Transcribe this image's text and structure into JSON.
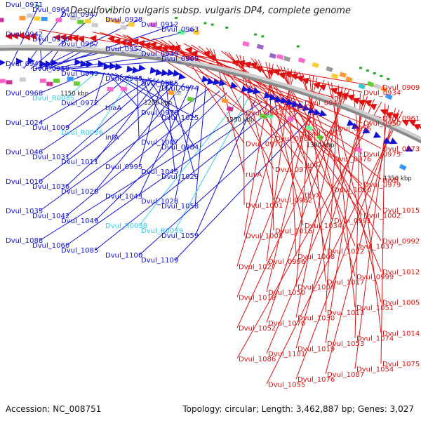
{
  "title": "Desulfovibrio vulgaris subsp. vulgaris DP4, complete genome",
  "footer": {
    "accession": "Accession: NC_008751",
    "summary": "Topology: circular; Length: 3,462,887 bp; Genes: 3,027"
  },
  "ring_labels": [
    {
      "label": "1150 kbp",
      "deg": 8
    },
    {
      "label": "1200 kbp",
      "deg": 21.5
    },
    {
      "label": "1250 kbp",
      "deg": 35
    },
    {
      "label": "1300 kbp",
      "deg": 48.5
    },
    {
      "label": "1350 kbp",
      "deg": 62
    }
  ],
  "colors": {
    "forward": "#1010d8",
    "trna": "#33ccee",
    "reverse": "#e01010",
    "backbone": "#8a8a8a"
  },
  "left_labels": [
    {
      "text": "Dvul_0971",
      "kind": "gene",
      "deg": 1
    },
    {
      "text": "Dvul_0964",
      "kind": "gene",
      "deg": 3
    },
    {
      "text": "Dvul_0947",
      "kind": "gene",
      "deg": 4
    },
    {
      "text": "Dvul_0928",
      "kind": "gene",
      "deg": 5
    },
    {
      "text": "Dvul_0912",
      "kind": "gene",
      "deg": 6
    },
    {
      "text": "Dvul_0963",
      "kind": "gene",
      "deg": 4.5
    },
    {
      "text": "Dvul_0942",
      "kind": "gene",
      "deg": 5.5
    },
    {
      "text": "Dvul_0930",
      "kind": "gene",
      "deg": 6
    },
    {
      "text": "Dvul_0962",
      "kind": "gene",
      "deg": 6.5
    },
    {
      "text": "Dvul_0952",
      "kind": "gene",
      "deg": 7
    },
    {
      "text": "Dvul_0939",
      "kind": "gene",
      "deg": 7.5
    },
    {
      "text": "Dvul_0969",
      "kind": "gene",
      "deg": 8
    },
    {
      "text": "Dvul_0943",
      "kind": "gene",
      "deg": 8.5
    },
    {
      "text": "Dvul_0959",
      "kind": "gene",
      "deg": 9
    },
    {
      "text": "Dvul_0949",
      "kind": "gene",
      "deg": 9.5
    },
    {
      "text": "Dvul_0965",
      "kind": "gene",
      "deg": 10
    },
    {
      "text": "Dvul_0955",
      "kind": "gene",
      "deg": 10.5
    },
    {
      "text": "Dvul_0974",
      "kind": "gene",
      "deg": 12
    },
    {
      "text": "Dvul_0968",
      "kind": "gene",
      "deg": 12.5
    },
    {
      "text": "Dvul_R0035",
      "kind": "trna",
      "deg": 13
    },
    {
      "text": "Dvul_0972",
      "kind": "gene",
      "deg": 14
    },
    {
      "text": "tnaA",
      "kind": "gene",
      "deg": 14.5
    },
    {
      "text": "Dvul_0978",
      "kind": "gene",
      "deg": 15
    },
    {
      "text": "Dvul_1025",
      "kind": "gene",
      "deg": 15.5
    },
    {
      "text": "Dvul_1024",
      "kind": "gene",
      "deg": 16.5
    },
    {
      "text": "Dvul_1009",
      "kind": "gene",
      "deg": 17.5
    },
    {
      "text": "Dvul_R0036",
      "kind": "trna",
      "deg": 18
    },
    {
      "text": "infA",
      "kind": "gene",
      "deg": 18.5
    },
    {
      "text": "Dvul_1007",
      "kind": "gene",
      "deg": 19
    },
    {
      "text": "Dvul_0984",
      "kind": "gene",
      "deg": 20
    },
    {
      "text": "Dvul_1046",
      "kind": "gene",
      "deg": 20.5
    },
    {
      "text": "Dvul_1031",
      "kind": "gene",
      "deg": 21
    },
    {
      "text": "Dvul_1011",
      "kind": "gene",
      "deg": 21.5
    },
    {
      "text": "Dvul_0995",
      "kind": "gene",
      "deg": 22
    },
    {
      "text": "Dvul_1045",
      "kind": "gene",
      "deg": 22.5
    },
    {
      "text": "Dvul_1029",
      "kind": "gene",
      "deg": 23
    },
    {
      "text": "Dvul_1010",
      "kind": "gene",
      "deg": 23.5
    },
    {
      "text": "Dvul_1036",
      "kind": "gene",
      "deg": 24
    },
    {
      "text": "Dvul_1020",
      "kind": "gene",
      "deg": 25
    },
    {
      "text": "Dvul_1043",
      "kind": "gene",
      "deg": 26
    },
    {
      "text": "Dvul_1028",
      "kind": "gene",
      "deg": 27
    },
    {
      "text": "Dvul_1058",
      "kind": "gene",
      "deg": 28
    },
    {
      "text": "Dvul_1035",
      "kind": "gene",
      "deg": 28.5
    },
    {
      "text": "Dvul_1042",
      "kind": "gene",
      "deg": 30
    },
    {
      "text": "Dvul_1049",
      "kind": "gene",
      "deg": 31
    },
    {
      "text": "Dvul_R0038",
      "kind": "trna",
      "deg": 33
    },
    {
      "text": "Dvul_R0039",
      "kind": "trna",
      "deg": 34
    },
    {
      "text": "Dvul_1059",
      "kind": "gene",
      "deg": 35
    },
    {
      "text": "Dvul_1088",
      "kind": "gene",
      "deg": 36
    },
    {
      "text": "Dvul_1060",
      "kind": "gene",
      "deg": 37
    },
    {
      "text": "Dvul_1085",
      "kind": "gene",
      "deg": 38
    },
    {
      "text": "Dvul_1100",
      "kind": "gene",
      "deg": 41
    },
    {
      "text": "Dvul_1109",
      "kind": "gene",
      "deg": 43
    }
  ],
  "right_labels": [
    {
      "text": "Dvul_0909",
      "deg": 5
    },
    {
      "text": "Dvul_0934",
      "deg": 12
    },
    {
      "text": "ndk",
      "deg": 13
    },
    {
      "text": "Dvul_0944",
      "deg": 15
    },
    {
      "text": "Dvul_0951",
      "deg": 16
    },
    {
      "text": "Dvul_0941",
      "deg": 16.5
    },
    {
      "text": "Dvul_0961",
      "deg": 18
    },
    {
      "text": "Dvul_0950",
      "deg": 18.5
    },
    {
      "text": "Dvul_0956",
      "deg": 20
    },
    {
      "text": "Dvul_0957",
      "deg": 21
    },
    {
      "text": "Dvul_0960",
      "deg": 22
    },
    {
      "text": "Dvul_0970",
      "deg": 23
    },
    {
      "text": "Dvul_0973",
      "deg": 24
    },
    {
      "text": "Dvul_0975",
      "deg": 25
    },
    {
      "text": "Dvul_0976",
      "deg": 26
    },
    {
      "text": "ruvC",
      "deg": 27
    },
    {
      "text": "Dvul_0977",
      "deg": 27.5
    },
    {
      "text": "ruvA",
      "deg": 28
    },
    {
      "text": "ruvB",
      "deg": 29
    },
    {
      "text": "Dvul_0979",
      "deg": 29.5
    },
    {
      "text": "Dvul_1000",
      "deg": 30
    },
    {
      "text": "thyX",
      "deg": 31
    },
    {
      "text": "Dvul_0982",
      "deg": 31.5
    },
    {
      "text": "Dvul_1001",
      "deg": 32
    },
    {
      "text": "Dvul_1015",
      "deg": 33
    },
    {
      "text": "Dvul_1002",
      "deg": 33.5
    },
    {
      "text": "Dvul_0991",
      "deg": 34
    },
    {
      "text": "Dvul_1034",
      "deg": 35
    },
    {
      "text": "Dvul_1016",
      "deg": 35.5
    },
    {
      "text": "Dvul_1003",
      "deg": 36
    },
    {
      "text": "Dvul_0992",
      "deg": 36.5
    },
    {
      "text": "Dvul_1037",
      "deg": 37
    },
    {
      "text": "Dvul_1022",
      "deg": 37.5
    },
    {
      "text": "Dvul_1008",
      "deg": 38
    },
    {
      "text": "Dvul_0996",
      "deg": 38.5
    },
    {
      "text": "Dvul_1027",
      "deg": 39
    },
    {
      "text": "Dvul_1012",
      "deg": 39.5
    },
    {
      "text": "Dvul_0999",
      "deg": 40
    },
    {
      "text": "Dvul_1017",
      "deg": 41
    },
    {
      "text": "Dvul_1004",
      "deg": 41.5
    },
    {
      "text": "Dvul_1050",
      "deg": 42
    },
    {
      "text": "Dvul_1018",
      "deg": 43
    },
    {
      "text": "Dvul_1005",
      "deg": 43.5
    },
    {
      "text": "Dvul_1051",
      "deg": 44
    },
    {
      "text": "Dvul_1013",
      "deg": 45
    },
    {
      "text": "Dvul_1030",
      "deg": 45.5
    },
    {
      "text": "Dvul_1070",
      "deg": 46
    },
    {
      "text": "Dvul_1052",
      "deg": 46.5
    },
    {
      "text": "Dvul_1014",
      "deg": 47
    },
    {
      "text": "Dvul_1074",
      "deg": 48
    },
    {
      "text": "Dvul_1053",
      "deg": 48.5
    },
    {
      "text": "Dvul_1019",
      "deg": 49
    },
    {
      "text": "Dvul_1101",
      "deg": 50
    },
    {
      "text": "Dvul_1086",
      "deg": 51
    },
    {
      "text": "Dvul_1075",
      "deg": 51.5
    },
    {
      "text": "Dvul_1054",
      "deg": 52
    },
    {
      "text": "Dvul_1087",
      "deg": 53
    },
    {
      "text": "Dvul_1076",
      "deg": 53.5
    },
    {
      "text": "Dvul_1055",
      "deg": 54
    }
  ]
}
